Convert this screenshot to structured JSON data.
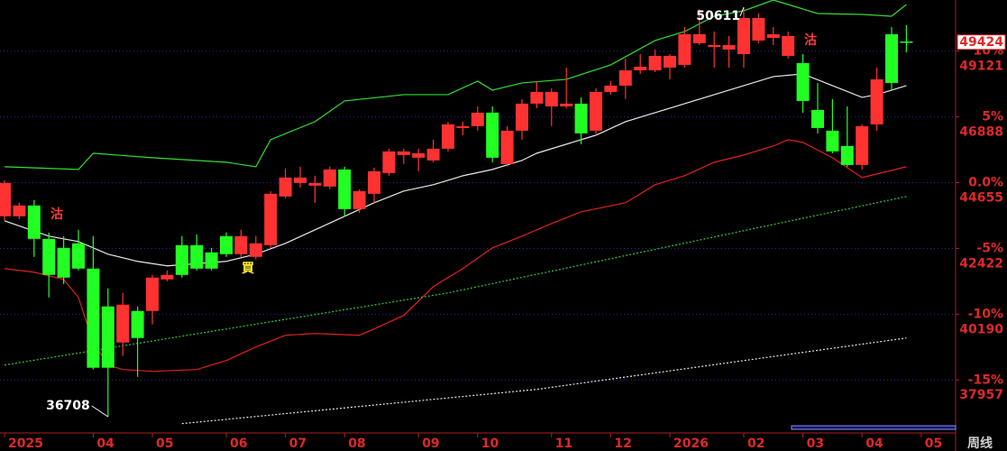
{
  "chart_data": {
    "type": "candlestick",
    "up_color": "#ff3232",
    "down_color": "#22ff22",
    "open": [
      43512,
      43512,
      43879,
      42747,
      42441,
      42594,
      41737,
      40452,
      39228,
      40299,
      40299,
      41370,
      42533,
      42533,
      42288,
      42839,
      42227,
      42135,
      42533,
      44185,
      44644,
      44552,
      44522,
      45103,
      43757,
      44277,
      44981,
      45593,
      45501,
      45409,
      45807,
      46511,
      46572,
      47031,
      45287,
      46419,
      47337,
      47245,
      47245,
      47337,
      46419,
      47735,
      47949,
      48469,
      48469,
      48561,
      48653,
      49387,
      49265,
      49173,
      49020,
      49479,
      49571,
      48959,
      48714,
      47123,
      46419,
      45899,
      45256,
      46633,
      49693,
      49448
    ],
    "high": [
      44736,
      43971,
      44063,
      42961,
      42839,
      43053,
      42839,
      41064,
      40911,
      40452,
      41523,
      41676,
      42839,
      42900,
      42441,
      42961,
      43053,
      42839,
      44369,
      45134,
      45195,
      44889,
      45195,
      45195,
      44430,
      45164,
      45807,
      45807,
      45807,
      46113,
      46725,
      46725,
      47245,
      47245,
      46572,
      47490,
      48102,
      47857,
      48561,
      47551,
      47857,
      48102,
      48867,
      49020,
      49173,
      49020,
      49938,
      50550,
      49785,
      49632,
      50611,
      50397,
      49938,
      49785,
      49020,
      48041,
      47490,
      47245,
      46633,
      48561,
      49938,
      49999
    ],
    "low": [
      43359,
      43420,
      42135,
      40758,
      41217,
      41676,
      38310,
      36708,
      38769,
      38065,
      39840,
      41309,
      41431,
      41676,
      41676,
      42135,
      42135,
      42043,
      42441,
      44124,
      44491,
      43971,
      44430,
      43512,
      43634,
      43971,
      44889,
      45287,
      45042,
      45348,
      45715,
      46266,
      46419,
      45348,
      45195,
      46113,
      47184,
      46572,
      47184,
      45960,
      46266,
      47643,
      47490,
      48347,
      48408,
      48163,
      48561,
      49326,
      48561,
      48561,
      48561,
      49387,
      49326,
      48867,
      47031,
      46327,
      45654,
      45195,
      45103,
      46419,
      47796,
      49081
    ],
    "close": [
      44644,
      43879,
      42747,
      41523,
      41431,
      41737,
      38371,
      38371,
      40513,
      39381,
      41431,
      41523,
      41523,
      41737,
      41737,
      42227,
      42839,
      42594,
      44277,
      44828,
      44828,
      44644,
      45103,
      43757,
      44369,
      45042,
      45715,
      45715,
      45654,
      45807,
      46633,
      46572,
      47031,
      45501,
      46419,
      47337,
      47735,
      47735,
      47337,
      46327,
      47735,
      47949,
      48469,
      48592,
      48959,
      48959,
      49693,
      49693,
      49326,
      49326,
      50244,
      50244,
      49693,
      49632,
      47429,
      46511,
      45715,
      45256,
      46572,
      48163,
      48041,
      49424
    ],
    "series": [
      {
        "color": "#33dd33",
        "dash": false,
        "x": [
          0,
          5,
          6,
          10,
          15,
          17,
          18,
          21,
          23,
          27,
          30,
          32,
          33,
          35,
          38,
          41,
          44,
          46,
          48,
          50,
          52,
          53,
          55,
          58,
          60,
          61
        ],
        "values": [
          45195,
          45103,
          45654,
          45501,
          45348,
          45195,
          46113,
          46725,
          47429,
          47643,
          47643,
          48102,
          47796,
          48041,
          48163,
          48653,
          49479,
          49785,
          50305,
          50489,
          50856,
          50703,
          50397,
          50366,
          50305,
          50703
        ]
      },
      {
        "color": "#e8e8e8",
        "dash": false,
        "x": [
          0,
          3,
          5,
          7,
          9,
          11,
          15,
          17,
          19,
          21,
          23,
          25,
          27,
          29,
          31,
          33,
          35,
          36,
          38,
          40,
          42,
          44,
          46,
          48,
          50,
          52,
          54,
          56,
          58,
          59,
          61
        ],
        "values": [
          43359,
          42839,
          42655,
          42227,
          41982,
          41829,
          41982,
          42227,
          42594,
          43053,
          43512,
          43971,
          44369,
          44583,
          44889,
          45103,
          45409,
          45654,
          45960,
          46266,
          46725,
          47031,
          47337,
          47643,
          47949,
          48255,
          48347,
          47949,
          47551,
          47643,
          47949
        ]
      },
      {
        "color": "#e02020",
        "dash": false,
        "x": [
          0,
          2,
          4,
          5,
          6,
          7,
          8,
          10,
          13,
          15,
          17,
          19,
          21,
          24,
          25,
          27,
          29,
          31,
          33,
          35,
          37,
          39,
          42,
          44,
          46,
          48,
          50,
          52,
          53,
          54,
          56,
          58,
          59,
          61
        ],
        "values": [
          41737,
          41615,
          41370,
          40758,
          39228,
          38463,
          38310,
          38249,
          38310,
          38616,
          39075,
          39473,
          39534,
          39473,
          39687,
          40146,
          41125,
          41737,
          42441,
          42839,
          43267,
          43665,
          43971,
          44583,
          44889,
          45348,
          45593,
          45899,
          46113,
          46021,
          45501,
          44828,
          44950,
          45195
        ]
      },
      {
        "color": "#33cc33",
        "dash": true,
        "x": [
          0,
          30,
          61
        ],
        "values": [
          38463,
          40911,
          44185
        ]
      },
      {
        "color": "#e8e8e8",
        "dash": true,
        "x": [
          12,
          36,
          61
        ],
        "values": [
          36474,
          37637,
          39381
        ]
      }
    ],
    "ylim": [
      36218,
      50856
    ],
    "yticks": [
      37957,
      40190,
      42422,
      44655,
      46888,
      49121
    ],
    "y2lim": [
      -18.89,
      13.89
    ],
    "y2ticks": [
      {
        "value": 10,
        "label": "10%"
      },
      {
        "value": 5,
        "label": "5%"
      },
      {
        "value": 0,
        "label": "0.0%"
      },
      {
        "value": -5,
        "label": "-5%"
      },
      {
        "value": -10,
        "label": "-10%"
      },
      {
        "value": -15,
        "label": "-15%"
      }
    ],
    "xticks": [
      {
        "value": 0,
        "label": "2025"
      },
      {
        "value": 6,
        "label": "04"
      },
      {
        "value": 10,
        "label": "05"
      },
      {
        "value": 15,
        "label": "06"
      },
      {
        "value": 19,
        "label": "07"
      },
      {
        "value": 23,
        "label": "08"
      },
      {
        "value": 28,
        "label": "09"
      },
      {
        "value": 32,
        "label": "10"
      },
      {
        "value": 37,
        "label": "11"
      },
      {
        "value": 41,
        "label": "12"
      },
      {
        "value": 45,
        "label": "2026"
      },
      {
        "value": 50,
        "label": "02"
      },
      {
        "value": 54,
        "label": "03"
      },
      {
        "value": 58,
        "label": "04"
      },
      {
        "value": 62,
        "label": "05"
      }
    ],
    "annotations": [
      "沽",
      "買",
      "沽"
    ],
    "period_label": "周线"
  }
}
